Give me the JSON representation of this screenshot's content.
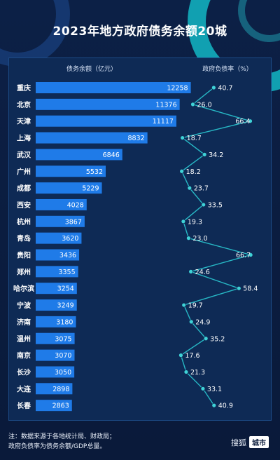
{
  "title": "2023年地方政府债务余额20城",
  "footer": {
    "line1": "注：数据来源于各地统计局、财政局；",
    "line2": "政府负债率为债务余额/GDP总量。"
  },
  "brand": {
    "part1": "搜狐",
    "part2": "城市"
  },
  "colors": {
    "bar": "#1f7be8",
    "line": "#27b8c5",
    "marker": "#3fd2d6"
  },
  "chart_data": {
    "type": "bar",
    "combo": "horizontal bar with line",
    "categories": [
      "重庆",
      "北京",
      "天津",
      "上海",
      "武汉",
      "广州",
      "成都",
      "西安",
      "杭州",
      "青岛",
      "贵阳",
      "郑州",
      "哈尔滨",
      "宁波",
      "济南",
      "温州",
      "南京",
      "长沙",
      "大连",
      "长春"
    ],
    "series": [
      {
        "name": "债务余额（亿元）",
        "type": "bar",
        "values": [
          12258,
          11376,
          11117,
          8832,
          6846,
          5532,
          5229,
          4028,
          3867,
          3620,
          3436,
          3355,
          3254,
          3249,
          3180,
          3075,
          3070,
          3050,
          2898,
          2863
        ]
      },
      {
        "name": "政府负债率（%）",
        "type": "line",
        "values": [
          40.7,
          26.0,
          66.4,
          18.7,
          34.2,
          18.2,
          23.7,
          33.5,
          19.3,
          23.0,
          66.7,
          24.6,
          58.4,
          19.7,
          24.9,
          35.2,
          17.6,
          21.3,
          33.1,
          40.9
        ]
      }
    ]
  }
}
